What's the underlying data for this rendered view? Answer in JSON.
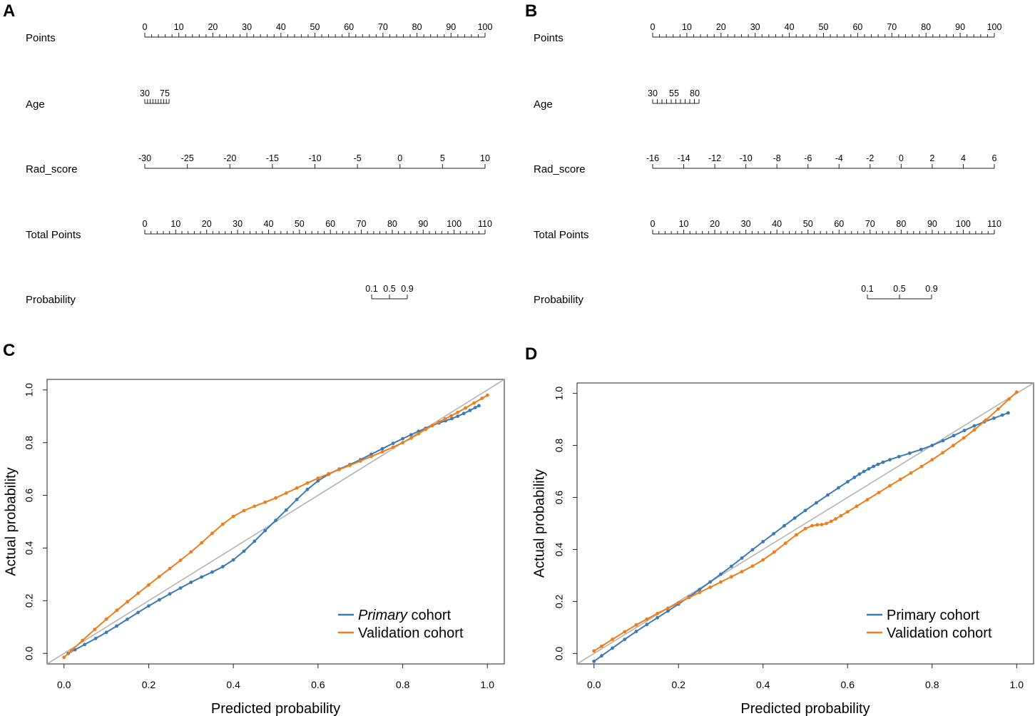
{
  "panels": [
    {
      "letter": "A",
      "type": "nomogram",
      "rows": [
        {
          "label": "Points",
          "labels": [
            "0",
            "10",
            "20",
            "30",
            "40",
            "50",
            "60",
            "70",
            "80",
            "90",
            "100"
          ]
        },
        {
          "label": "Age",
          "labels": [
            "30",
            "75"
          ]
        },
        {
          "label": "Rad_score",
          "labels": [
            "-30",
            "-25",
            "-20",
            "-15",
            "-10",
            "-5",
            "0",
            "5",
            "10"
          ]
        },
        {
          "label": "Total Points",
          "labels": [
            "0",
            "10",
            "20",
            "30",
            "40",
            "50",
            "60",
            "70",
            "80",
            "90",
            "100",
            "110"
          ]
        },
        {
          "label": "Probability",
          "labels": [
            "0.1",
            "0.5",
            "0.9"
          ]
        }
      ]
    },
    {
      "letter": "B",
      "type": "nomogram",
      "rows": [
        {
          "label": "Points",
          "labels": [
            "0",
            "10",
            "20",
            "30",
            "40",
            "50",
            "60",
            "70",
            "80",
            "90",
            "100"
          ]
        },
        {
          "label": "Age",
          "labels": [
            "30",
            "55",
            "80"
          ]
        },
        {
          "label": "Rad_score",
          "labels": [
            "-16",
            "-14",
            "-12",
            "-10",
            "-8",
            "-6",
            "-4",
            "-2",
            "0",
            "2",
            "4",
            "6"
          ]
        },
        {
          "label": "Total Points",
          "labels": [
            "0",
            "10",
            "20",
            "30",
            "40",
            "50",
            "60",
            "70",
            "80",
            "90",
            "100",
            "110"
          ]
        },
        {
          "label": "Probability",
          "labels": [
            "0.1",
            "0.5",
            "0.9"
          ]
        }
      ]
    }
  ],
  "chart_data": [
    {
      "letter": "C",
      "type": "line",
      "xlabel": "Predicted probability",
      "ylabel": "Actual probability",
      "xlim": [
        -0.04,
        1.04
      ],
      "ylim": [
        -0.04,
        1.04
      ],
      "xticks": [
        "0.0",
        "0.2",
        "0.4",
        "0.6",
        "0.8",
        "1.0"
      ],
      "yticks": [
        "0.0",
        "0.2",
        "0.4",
        "0.6",
        "0.8",
        "1.0"
      ],
      "legend": {
        "position": "bottom-right"
      },
      "series": [
        {
          "name": "Primary cohort",
          "name_style": "italic-first-word",
          "color": "#3a7ab5",
          "points": [
            [
              0.01,
              0.0
            ],
            [
              0.1,
              0.08
            ],
            [
              0.2,
              0.18
            ],
            [
              0.3,
              0.27
            ],
            [
              0.4,
              0.355
            ],
            [
              0.5,
              0.505
            ],
            [
              0.6,
              0.655
            ],
            [
              0.7,
              0.735
            ],
            [
              0.8,
              0.815
            ],
            [
              0.87,
              0.865
            ],
            [
              0.93,
              0.9
            ],
            [
              0.98,
              0.94
            ]
          ]
        },
        {
          "name": "Validation cohort",
          "color": "#f07d1a",
          "points": [
            [
              0.0,
              -0.015
            ],
            [
              0.1,
              0.13
            ],
            [
              0.2,
              0.26
            ],
            [
              0.3,
              0.385
            ],
            [
              0.4,
              0.52
            ],
            [
              0.5,
              0.59
            ],
            [
              0.6,
              0.665
            ],
            [
              0.7,
              0.73
            ],
            [
              0.8,
              0.8
            ],
            [
              0.87,
              0.865
            ],
            [
              0.93,
              0.915
            ],
            [
              1.0,
              0.98
            ]
          ]
        }
      ]
    },
    {
      "letter": "D",
      "type": "line",
      "xlabel": "Predicted probability",
      "ylabel": "Actual probability",
      "xlim": [
        -0.04,
        1.04
      ],
      "ylim": [
        -0.04,
        1.04
      ],
      "xticks": [
        "0.0",
        "0.2",
        "0.4",
        "0.6",
        "0.8",
        "1.0"
      ],
      "yticks": [
        "0.0",
        "0.2",
        "0.4",
        "0.6",
        "0.8",
        "1.0"
      ],
      "legend": {
        "position": "bottom-right"
      },
      "series": [
        {
          "name": "Primary cohort",
          "color": "#3a7ab5",
          "points": [
            [
              0.0,
              -0.03
            ],
            [
              0.1,
              0.085
            ],
            [
              0.2,
              0.19
            ],
            [
              0.3,
              0.305
            ],
            [
              0.4,
              0.43
            ],
            [
              0.5,
              0.55
            ],
            [
              0.6,
              0.66
            ],
            [
              0.65,
              0.71
            ],
            [
              0.7,
              0.745
            ],
            [
              0.8,
              0.8
            ],
            [
              0.9,
              0.875
            ],
            [
              0.98,
              0.925
            ]
          ]
        },
        {
          "name": "Validation cohort",
          "color": "#f07d1a",
          "points": [
            [
              0.0,
              0.01
            ],
            [
              0.1,
              0.11
            ],
            [
              0.2,
              0.195
            ],
            [
              0.3,
              0.275
            ],
            [
              0.4,
              0.36
            ],
            [
              0.5,
              0.48
            ],
            [
              0.55,
              0.5
            ],
            [
              0.6,
              0.545
            ],
            [
              0.7,
              0.645
            ],
            [
              0.8,
              0.745
            ],
            [
              0.9,
              0.86
            ],
            [
              1.0,
              1.005
            ]
          ]
        }
      ]
    }
  ]
}
